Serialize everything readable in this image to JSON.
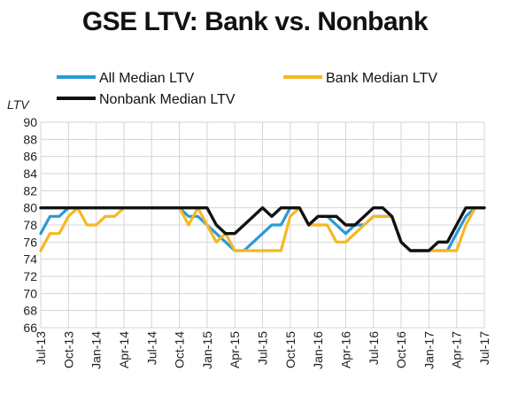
{
  "chart_data": {
    "type": "line",
    "title": "GSE LTV: Bank vs. Nonbank",
    "ylabel": "LTV",
    "ylim": [
      66,
      90
    ],
    "yticks": [
      66,
      68,
      70,
      72,
      74,
      76,
      78,
      80,
      82,
      84,
      86,
      88,
      90
    ],
    "xtick_labels": [
      "Jul-13",
      "Oct-13",
      "Jan-14",
      "Apr-14",
      "Jul-14",
      "Oct-14",
      "Jan-15",
      "Apr-15",
      "Jul-15",
      "Oct-15",
      "Jan-16",
      "Apr-16",
      "Jul-16",
      "Oct-16",
      "Jan-17",
      "Apr-17",
      "Jul-17"
    ],
    "x": [
      "Jul-13",
      "Aug-13",
      "Sep-13",
      "Oct-13",
      "Nov-13",
      "Dec-13",
      "Jan-14",
      "Feb-14",
      "Mar-14",
      "Apr-14",
      "May-14",
      "Jun-14",
      "Jul-14",
      "Aug-14",
      "Sep-14",
      "Oct-14",
      "Nov-14",
      "Dec-14",
      "Jan-15",
      "Feb-15",
      "Mar-15",
      "Apr-15",
      "May-15",
      "Jun-15",
      "Jul-15",
      "Aug-15",
      "Sep-15",
      "Oct-15",
      "Nov-15",
      "Dec-15",
      "Jan-16",
      "Feb-16",
      "Mar-16",
      "Apr-16",
      "May-16",
      "Jun-16",
      "Jul-16",
      "Aug-16",
      "Sep-16",
      "Oct-16",
      "Nov-16",
      "Dec-16",
      "Jan-17",
      "Feb-17",
      "Mar-17",
      "Apr-17",
      "May-17",
      "Jun-17",
      "Jul-17"
    ],
    "grid": true,
    "legend": "top",
    "series": [
      {
        "name": "All Median LTV",
        "color": "#2a9ad6",
        "values": [
          77,
          79,
          79,
          80,
          80,
          80,
          80,
          80,
          80,
          80,
          80,
          80,
          80,
          80,
          80,
          80,
          79,
          79,
          78,
          77,
          76,
          75,
          75,
          76,
          77,
          78,
          78,
          80,
          80,
          78,
          79,
          79,
          78,
          77,
          78,
          78,
          79,
          79,
          79,
          76,
          75,
          75,
          75,
          75,
          75,
          77,
          79,
          80,
          80
        ]
      },
      {
        "name": "Bank Median LTV",
        "color": "#f5b821",
        "values": [
          75,
          77,
          77,
          79,
          80,
          78,
          78,
          79,
          79,
          80,
          80,
          80,
          80,
          80,
          80,
          80,
          78,
          80,
          78,
          76,
          77,
          75,
          75,
          75,
          75,
          75,
          75,
          79,
          80,
          78,
          78,
          78,
          76,
          76,
          77,
          78,
          79,
          79,
          79,
          76,
          75,
          75,
          75,
          75,
          75,
          75,
          78,
          80,
          80
        ]
      },
      {
        "name": "Nonbank Median LTV",
        "color": "#111111",
        "values": [
          80,
          80,
          80,
          80,
          80,
          80,
          80,
          80,
          80,
          80,
          80,
          80,
          80,
          80,
          80,
          80,
          80,
          80,
          80,
          78,
          77,
          77,
          78,
          79,
          80,
          79,
          80,
          80,
          80,
          78,
          79,
          79,
          79,
          78,
          78,
          79,
          80,
          80,
          79,
          76,
          75,
          75,
          75,
          76,
          76,
          78,
          80,
          80,
          80
        ]
      }
    ]
  }
}
